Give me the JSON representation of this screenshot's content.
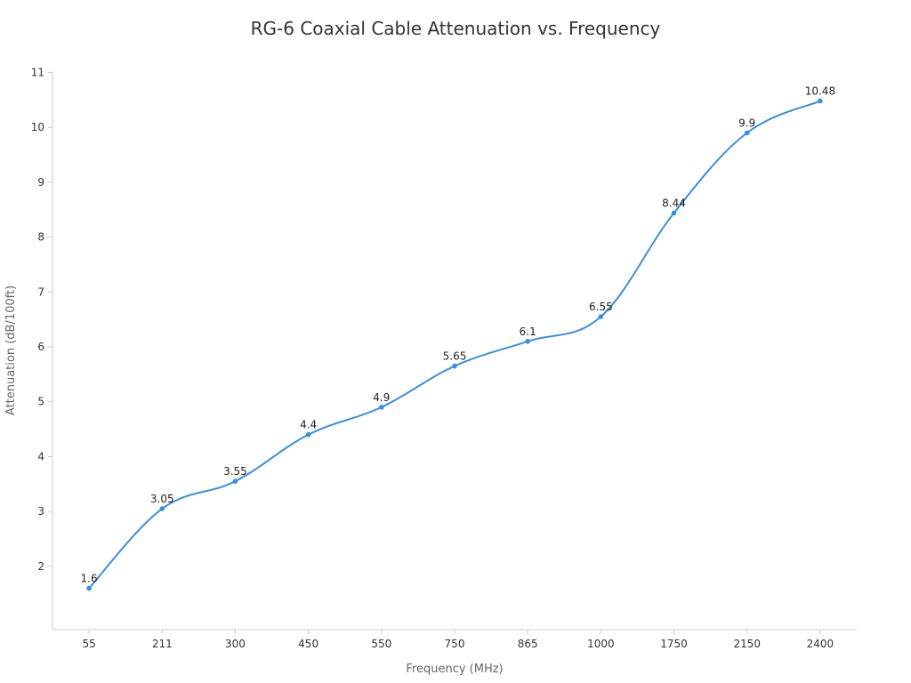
{
  "chart_data": {
    "type": "line",
    "title": "RG-6 Coaxial Cable Attenuation vs. Frequency",
    "xlabel": "Frequency (MHz)",
    "ylabel": "Attenuation (dB/100ft)",
    "categories": [
      "55",
      "211",
      "300",
      "450",
      "550",
      "750",
      "865",
      "1000",
      "1750",
      "2150",
      "2400"
    ],
    "series": [
      {
        "values": [
          1.6,
          3.05,
          3.55,
          4.4,
          4.9,
          5.65,
          6.1,
          6.55,
          8.44,
          9.9,
          10.48
        ]
      }
    ],
    "ylim": [
      1,
      11
    ],
    "yticks": [
      2,
      3,
      4,
      5,
      6,
      7,
      8,
      9,
      10,
      11
    ],
    "grid": false,
    "legend": "none",
    "data_labels": true,
    "smooth": true,
    "colors": {
      "line": "#3a8fdd",
      "axis": "#cccccc",
      "text": "#333333",
      "axis_title": "#666666"
    }
  }
}
